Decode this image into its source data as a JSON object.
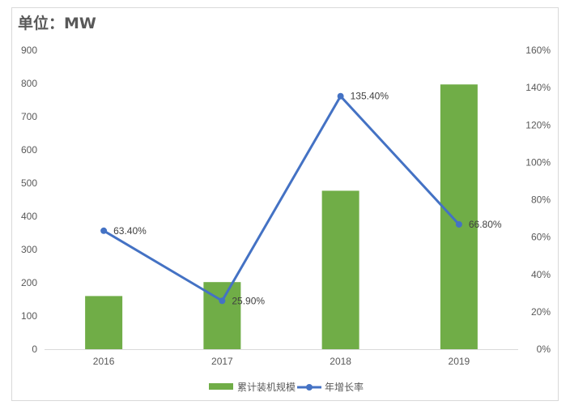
{
  "unit_title": "单位：MW",
  "chart_data": {
    "type": "bar",
    "categories": [
      "2016",
      "2017",
      "2018",
      "2019"
    ],
    "series": [
      {
        "name": "累计装机规模",
        "type": "bar",
        "axis": "left",
        "values": [
          160,
          202,
          477,
          797
        ],
        "color": "#70ad47"
      },
      {
        "name": "年增长率",
        "type": "line",
        "axis": "right",
        "values": [
          63.4,
          25.9,
          135.4,
          66.8
        ],
        "color": "#4472c4"
      }
    ],
    "data_labels": [
      "63.40%",
      "25.90%",
      "135.40%",
      "66.80%"
    ],
    "left_axis": {
      "ylim": [
        0,
        900
      ],
      "ticks": [
        "0",
        "100",
        "200",
        "300",
        "400",
        "500",
        "600",
        "700",
        "800",
        "900"
      ]
    },
    "right_axis": {
      "ylim": [
        0,
        160
      ],
      "ticks": [
        "0%",
        "20%",
        "40%",
        "60%",
        "80%",
        "100%",
        "120%",
        "140%",
        "160%"
      ]
    },
    "grid": false,
    "legend": "bottom"
  }
}
